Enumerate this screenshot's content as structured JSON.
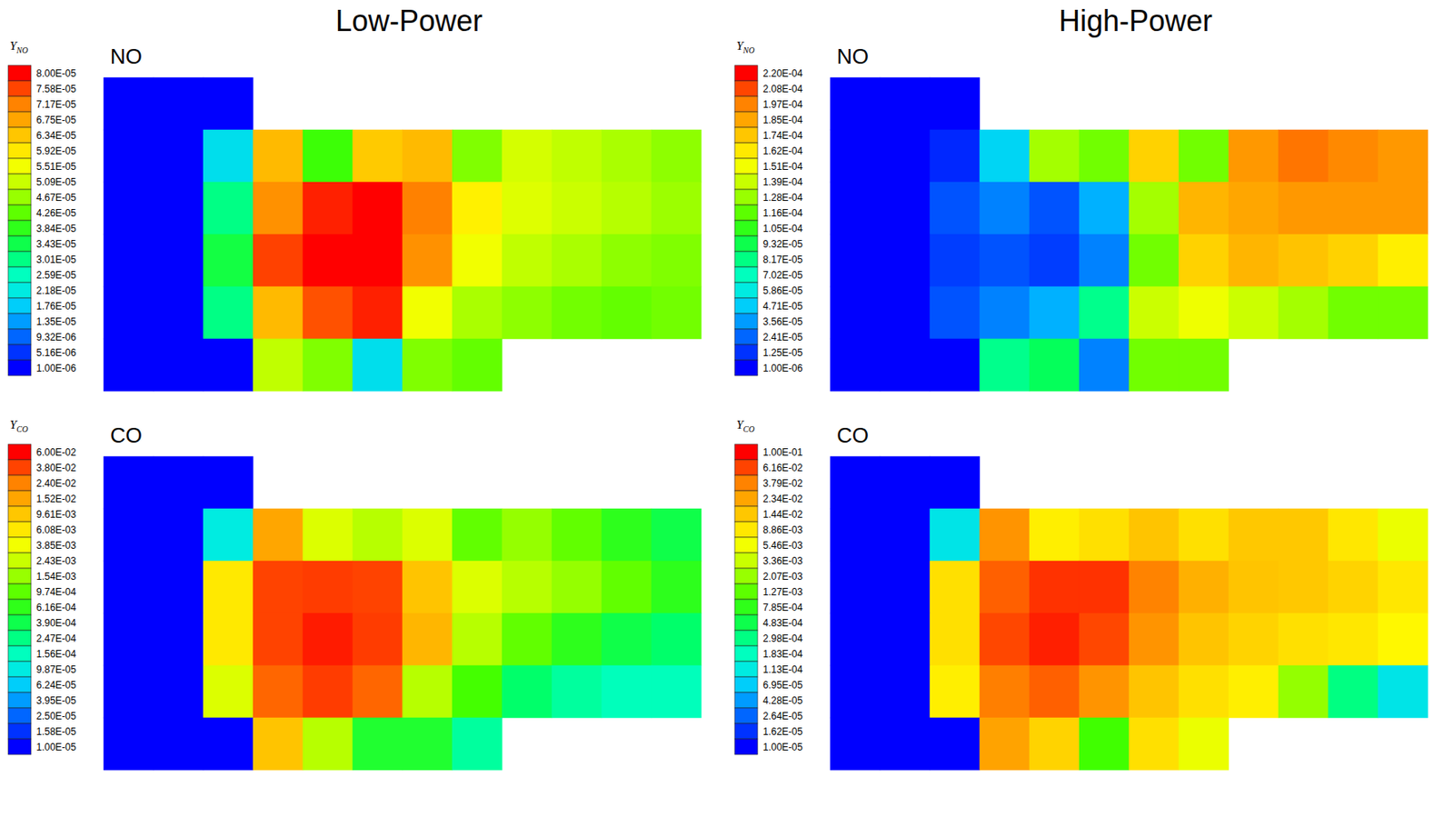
{
  "chart_data": [
    {
      "type": "heatmap",
      "title": "Low-Power",
      "annotation": "NO",
      "tick_labels": false,
      "colorbar": {
        "title": "Y",
        "title_subscript": "NO",
        "range": [
          1e-06,
          8e-05
        ],
        "ticks": [
          {
            "value": 8e-05,
            "label": "8.00E-05"
          },
          {
            "value": 7.58e-05,
            "label": "7.58E-05"
          },
          {
            "value": 7.17e-05,
            "label": "7.17E-05"
          },
          {
            "value": 6.75e-05,
            "label": "6.75E-05"
          },
          {
            "value": 6.34e-05,
            "label": "6.34E-05"
          },
          {
            "value": 5.92e-05,
            "label": "5.92E-05"
          },
          {
            "value": 5.51e-05,
            "label": "5.51E-05"
          },
          {
            "value": 5.09e-05,
            "label": "5.09E-05"
          },
          {
            "value": 4.67e-05,
            "label": "4.67E-05"
          },
          {
            "value": 4.26e-05,
            "label": "4.26E-05"
          },
          {
            "value": 3.84e-05,
            "label": "3.84E-05"
          },
          {
            "value": 3.43e-05,
            "label": "3.43E-05"
          },
          {
            "value": 3.01e-05,
            "label": "3.01E-05"
          },
          {
            "value": 2.59e-05,
            "label": "2.59E-05"
          },
          {
            "value": 2.18e-05,
            "label": "2.18E-05"
          },
          {
            "value": 1.76e-05,
            "label": "1.76E-05"
          },
          {
            "value": 1.35e-05,
            "label": "1.35E-05"
          },
          {
            "value": 9.32e-06,
            "label": "9.32E-06"
          },
          {
            "value": 5.16e-06,
            "label": "5.16E-06"
          },
          {
            "value": 1e-06,
            "label": "1.00E-06"
          }
        ]
      },
      "cells": [
        [
          1e-06,
          1e-06,
          1e-06,
          null,
          null,
          null,
          null,
          null,
          null,
          null,
          null,
          null
        ],
        [
          1e-06,
          1e-06,
          2e-05,
          6.5e-05,
          4e-05,
          6.3e-05,
          6.5e-05,
          4.5e-05,
          5.2e-05,
          5e-05,
          4.8e-05,
          4.6e-05
        ],
        [
          1e-06,
          1e-06,
          3e-05,
          7e-05,
          7.8e-05,
          8e-05,
          7.2e-05,
          5.8e-05,
          5.3e-05,
          5.1e-05,
          4.9e-05,
          4.7e-05
        ],
        [
          1e-06,
          1e-06,
          3.5e-05,
          7.6e-05,
          8e-05,
          8e-05,
          7e-05,
          5.5e-05,
          5e-05,
          4.8e-05,
          4.6e-05,
          4.5e-05
        ],
        [
          1e-06,
          1e-06,
          3e-05,
          6.5e-05,
          7.5e-05,
          7.8e-05,
          5.5e-05,
          4.8e-05,
          4.6e-05,
          4.4e-05,
          4.3e-05,
          4.4e-05
        ],
        [
          1e-06,
          1e-06,
          1e-06,
          5e-05,
          4.5e-05,
          2e-05,
          4.5e-05,
          4.3e-05,
          null,
          null,
          null,
          null
        ]
      ]
    },
    {
      "type": "heatmap",
      "title": "High-Power",
      "annotation": "NO",
      "tick_labels": false,
      "colorbar": {
        "title": "Y",
        "title_subscript": "NO",
        "range": [
          1e-06,
          0.00022
        ],
        "ticks": [
          {
            "value": 0.00022,
            "label": "2.20E-04"
          },
          {
            "value": 0.000208,
            "label": "2.08E-04"
          },
          {
            "value": 0.000197,
            "label": "1.97E-04"
          },
          {
            "value": 0.000185,
            "label": "1.85E-04"
          },
          {
            "value": 0.000174,
            "label": "1.74E-04"
          },
          {
            "value": 0.000162,
            "label": "1.62E-04"
          },
          {
            "value": 0.000151,
            "label": "1.51E-04"
          },
          {
            "value": 0.000139,
            "label": "1.39E-04"
          },
          {
            "value": 0.000128,
            "label": "1.28E-04"
          },
          {
            "value": 0.000116,
            "label": "1.16E-04"
          },
          {
            "value": 0.000105,
            "label": "1.05E-04"
          },
          {
            "value": 9.32e-05,
            "label": "9.32E-05"
          },
          {
            "value": 8.17e-05,
            "label": "8.17E-05"
          },
          {
            "value": 7.02e-05,
            "label": "7.02E-05"
          },
          {
            "value": 5.86e-05,
            "label": "5.86E-05"
          },
          {
            "value": 4.71e-05,
            "label": "4.71E-05"
          },
          {
            "value": 3.56e-05,
            "label": "3.56E-05"
          },
          {
            "value": 2.41e-05,
            "label": "2.41E-05"
          },
          {
            "value": 1.25e-05,
            "label": "1.25E-05"
          },
          {
            "value": 1e-06,
            "label": "1.00E-06"
          }
        ]
      },
      "cells": [
        [
          1e-06,
          1e-06,
          1e-06,
          null,
          null,
          null,
          null,
          null,
          null,
          null,
          null,
          null
        ],
        [
          1e-06,
          1e-06,
          1e-05,
          5e-05,
          0.00013,
          0.00012,
          0.00017,
          0.00012,
          0.00019,
          0.0002,
          0.000195,
          0.00019
        ],
        [
          1e-06,
          1e-06,
          2e-05,
          3e-05,
          2e-05,
          4e-05,
          0.00013,
          0.00018,
          0.000185,
          0.00019,
          0.00019,
          0.00019
        ],
        [
          1e-06,
          1e-06,
          1.5e-05,
          2e-05,
          1.5e-05,
          3e-05,
          0.00012,
          0.00017,
          0.00018,
          0.000175,
          0.00017,
          0.00016
        ],
        [
          1e-06,
          1e-06,
          2e-05,
          3e-05,
          4e-05,
          8e-05,
          0.00014,
          0.00015,
          0.00014,
          0.00013,
          0.00012,
          0.00012
        ],
        [
          1e-06,
          1e-06,
          1e-06,
          8e-05,
          9e-05,
          3e-05,
          0.00012,
          0.00012,
          null,
          null,
          null,
          null
        ]
      ]
    },
    {
      "type": "heatmap",
      "annotation": "CO",
      "tick_labels": false,
      "log": true,
      "colorbar": {
        "title": "Y",
        "title_subscript": "CO",
        "range": [
          1e-05,
          0.06
        ],
        "ticks": [
          {
            "value": 0.06,
            "label": "6.00E-02"
          },
          {
            "value": 0.038,
            "label": "3.80E-02"
          },
          {
            "value": 0.024,
            "label": "2.40E-02"
          },
          {
            "value": 0.0152,
            "label": "1.52E-02"
          },
          {
            "value": 0.00961,
            "label": "9.61E-03"
          },
          {
            "value": 0.00608,
            "label": "6.08E-03"
          },
          {
            "value": 0.00385,
            "label": "3.85E-03"
          },
          {
            "value": 0.00243,
            "label": "2.43E-03"
          },
          {
            "value": 0.00154,
            "label": "1.54E-03"
          },
          {
            "value": 0.000974,
            "label": "9.74E-04"
          },
          {
            "value": 0.000616,
            "label": "6.16E-04"
          },
          {
            "value": 0.00039,
            "label": "3.90E-04"
          },
          {
            "value": 0.000247,
            "label": "2.47E-04"
          },
          {
            "value": 0.000156,
            "label": "1.56E-04"
          },
          {
            "value": 9.87e-05,
            "label": "9.87E-05"
          },
          {
            "value": 6.24e-05,
            "label": "6.24E-05"
          },
          {
            "value": 3.95e-05,
            "label": "3.95E-05"
          },
          {
            "value": 2.5e-05,
            "label": "2.50E-05"
          },
          {
            "value": 1.58e-05,
            "label": "1.58E-05"
          },
          {
            "value": 1e-05,
            "label": "1.00E-05"
          }
        ]
      },
      "cells": [
        [
          1e-05,
          1e-05,
          1e-05,
          null,
          null,
          null,
          null,
          null,
          null,
          null,
          null,
          null
        ],
        [
          1e-05,
          1e-05,
          0.0001,
          0.015,
          0.003,
          0.002,
          0.003,
          0.001,
          0.0015,
          0.001,
          0.0006,
          0.0004
        ],
        [
          1e-05,
          1e-05,
          0.006,
          0.038,
          0.04,
          0.038,
          0.01,
          0.003,
          0.002,
          0.0015,
          0.001,
          0.0006
        ],
        [
          1e-05,
          1e-05,
          0.006,
          0.038,
          0.05,
          0.04,
          0.012,
          0.002,
          0.001,
          0.0006,
          0.0004,
          0.0003
        ],
        [
          1e-05,
          1e-05,
          0.003,
          0.03,
          0.04,
          0.03,
          0.002,
          0.0008,
          0.0003,
          0.0002,
          0.00016,
          0.00016
        ],
        [
          1e-05,
          1e-05,
          1e-05,
          0.01,
          0.002,
          0.0005,
          0.0005,
          0.0002,
          null,
          null,
          null,
          null
        ]
      ]
    },
    {
      "type": "heatmap",
      "annotation": "CO",
      "tick_labels": false,
      "log": true,
      "colorbar": {
        "title": "Y",
        "title_subscript": "CO",
        "range": [
          1e-05,
          0.1
        ],
        "ticks": [
          {
            "value": 0.1,
            "label": "1.00E-01"
          },
          {
            "value": 0.0616,
            "label": "6.16E-02"
          },
          {
            "value": 0.0379,
            "label": "3.79E-02"
          },
          {
            "value": 0.0234,
            "label": "2.34E-02"
          },
          {
            "value": 0.0144,
            "label": "1.44E-02"
          },
          {
            "value": 0.00886,
            "label": "8.86E-03"
          },
          {
            "value": 0.00546,
            "label": "5.46E-03"
          },
          {
            "value": 0.00336,
            "label": "3.36E-03"
          },
          {
            "value": 0.00207,
            "label": "2.07E-03"
          },
          {
            "value": 0.00127,
            "label": "1.27E-03"
          },
          {
            "value": 0.000785,
            "label": "7.85E-04"
          },
          {
            "value": 0.000483,
            "label": "4.83E-04"
          },
          {
            "value": 0.000298,
            "label": "2.98E-04"
          },
          {
            "value": 0.000183,
            "label": "1.83E-04"
          },
          {
            "value": 0.000113,
            "label": "1.13E-04"
          },
          {
            "value": 6.95e-05,
            "label": "6.95E-05"
          },
          {
            "value": 4.28e-05,
            "label": "4.28E-05"
          },
          {
            "value": 2.64e-05,
            "label": "2.64E-05"
          },
          {
            "value": 1.62e-05,
            "label": "1.62E-05"
          },
          {
            "value": 1e-05,
            "label": "1.00E-05"
          }
        ]
      },
      "cells": [
        [
          1e-05,
          1e-05,
          1e-05,
          null,
          null,
          null,
          null,
          null,
          null,
          null,
          null,
          null
        ],
        [
          1e-05,
          1e-05,
          0.0001,
          0.03,
          0.008,
          0.01,
          0.015,
          0.01,
          0.014,
          0.014,
          0.009,
          0.005
        ],
        [
          1e-05,
          1e-05,
          0.01,
          0.05,
          0.07,
          0.07,
          0.038,
          0.02,
          0.015,
          0.014,
          0.012,
          0.009
        ],
        [
          1e-05,
          1e-05,
          0.01,
          0.06,
          0.08,
          0.06,
          0.03,
          0.015,
          0.012,
          0.01,
          0.009,
          0.007
        ],
        [
          1e-05,
          1e-05,
          0.008,
          0.04,
          0.05,
          0.03,
          0.015,
          0.01,
          0.008,
          0.002,
          0.0003,
          0.0001
        ],
        [
          1e-05,
          1e-05,
          1e-05,
          0.024,
          0.012,
          0.001,
          0.01,
          0.005,
          null,
          null,
          null,
          null
        ]
      ]
    }
  ]
}
